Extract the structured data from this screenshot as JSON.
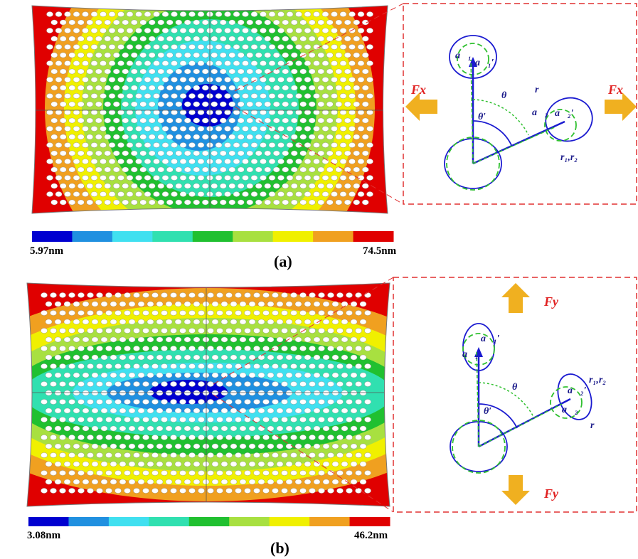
{
  "panels": [
    {
      "label": "(a)",
      "colorbar": {
        "min_label": "5.97nm",
        "max_label": "74.5nm"
      },
      "force_1": "Fx",
      "force_2": "Fx",
      "diagram": {
        "a1": "a⃗₁",
        "a1_prime": "a⃗₁′",
        "a2": "a⃗₂",
        "a2_prime": "a⃗₂′",
        "theta": "θ",
        "theta_prime": "θ′",
        "r": "r",
        "r12": "r₁,r₂"
      }
    },
    {
      "label": "(b)",
      "colorbar": {
        "min_label": "3.08nm",
        "max_label": "46.2nm"
      },
      "force_1": "Fy",
      "force_2": "Fy",
      "diagram": {
        "a1": "a⃗₁",
        "a1_prime": "a⃗₁′",
        "a2": "a⃗₂",
        "a2_prime": "a⃗₂′",
        "theta": "θ",
        "theta_prime": "θ′",
        "r": "r",
        "r12": "r₁,r₂"
      }
    }
  ]
}
